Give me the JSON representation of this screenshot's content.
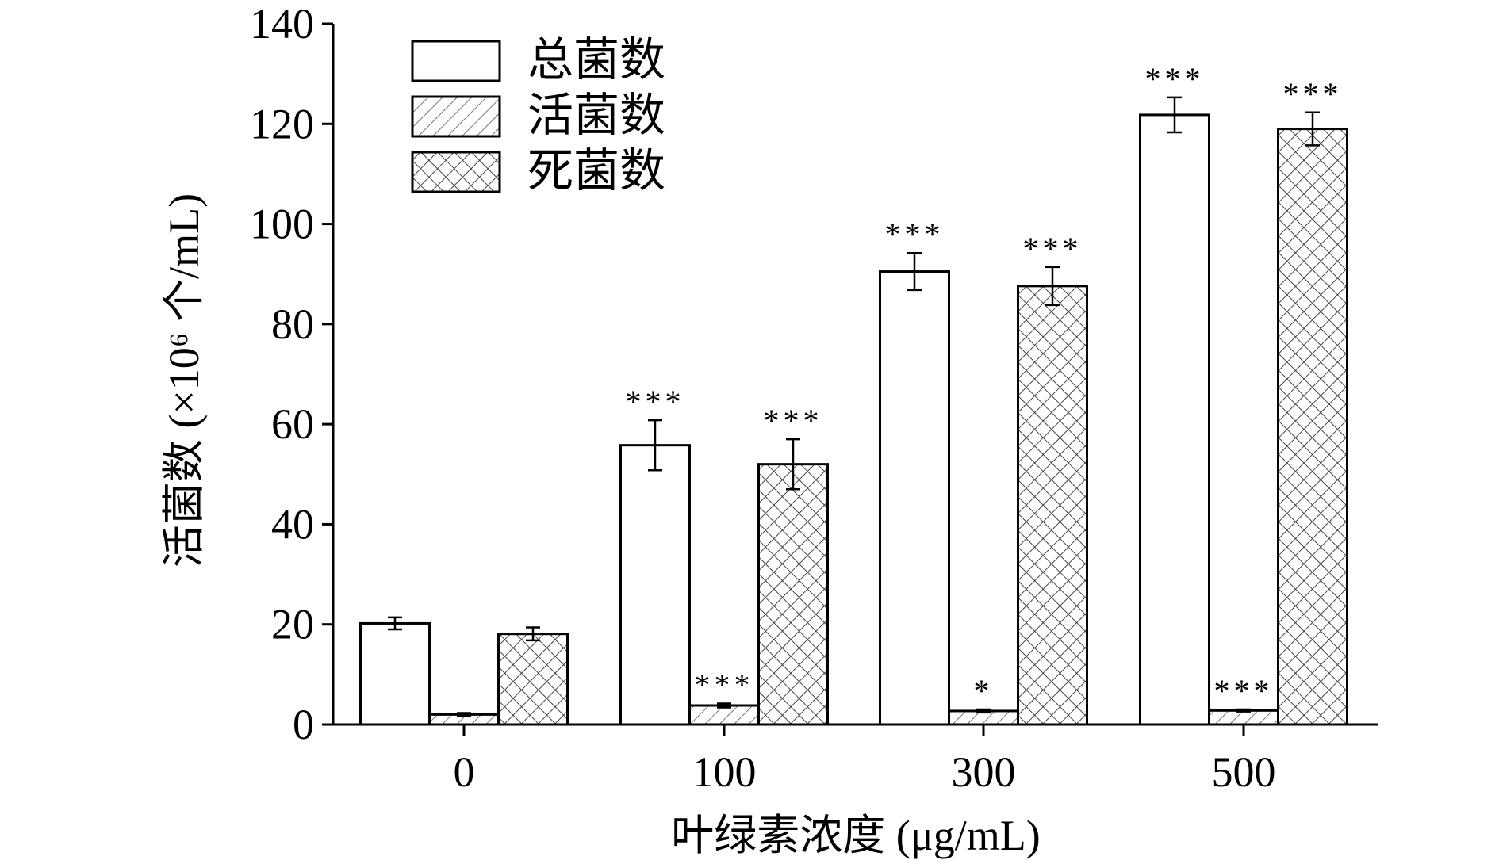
{
  "chart_data": {
    "type": "bar",
    "categories": [
      "0",
      "100",
      "300",
      "500"
    ],
    "xlabel": "叶绿素浓度 (μg/mL)",
    "ylabel": "活菌数 (×10⁶ 个/mL)",
    "ylim": [
      0,
      140
    ],
    "yticks": [
      "0",
      "20",
      "40",
      "60",
      "80",
      "100",
      "120",
      "140"
    ],
    "legend_position": "top-left",
    "grid": false,
    "series": [
      {
        "name": "总菌数",
        "pattern": "blank",
        "values": [
          20.2,
          55.8,
          90.5,
          121.8
        ],
        "errors": [
          1.2,
          5.0,
          3.7,
          3.5
        ],
        "significance": [
          "",
          "***",
          "***",
          "***"
        ]
      },
      {
        "name": "活菌数",
        "pattern": "diagonal-hatch",
        "values": [
          2.0,
          3.8,
          2.7,
          2.8
        ],
        "errors": [
          0.3,
          0.4,
          0.3,
          0.2
        ],
        "significance": [
          "",
          "***",
          "*",
          "***"
        ]
      },
      {
        "name": "死菌数",
        "pattern": "crosshatch",
        "values": [
          18.1,
          52.0,
          87.6,
          119.0
        ],
        "errors": [
          1.3,
          5.0,
          3.8,
          3.3
        ],
        "significance": [
          "",
          "***",
          "***",
          "***"
        ]
      }
    ],
    "colors": {
      "bar_stroke": "#000000",
      "bar_fill": "#ffffff",
      "pattern": "#555555"
    }
  }
}
